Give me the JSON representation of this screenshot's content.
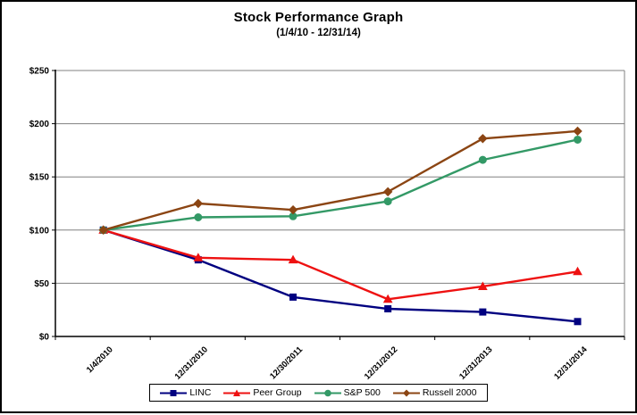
{
  "window": {
    "background_color": "#ffffff",
    "frame_border_color": "#000000"
  },
  "chart_data": {
    "type": "line",
    "title": "Stock Performance Graph",
    "subtitle": "(1/4/10 - 12/31/14)",
    "categories": [
      "1/4/2010",
      "12/31/2010",
      "12/30/2011",
      "12/31/2012",
      "12/31/2013",
      "12/31/2014"
    ],
    "series": [
      {
        "name": "LINC",
        "color": "#000080",
        "marker": "square",
        "values": [
          100,
          72,
          37,
          26,
          23,
          14
        ]
      },
      {
        "name": "Peer Group",
        "color": "#ee1111",
        "marker": "triangle",
        "values": [
          100,
          74,
          72,
          35,
          47,
          61
        ]
      },
      {
        "name": "S&P 500",
        "color": "#339966",
        "marker": "circle",
        "values": [
          100,
          112,
          113,
          127,
          166,
          185
        ]
      },
      {
        "name": "Russell 2000",
        "color": "#8b4513",
        "marker": "diamond",
        "values": [
          100,
          125,
          119,
          136,
          186,
          193
        ]
      }
    ],
    "ylim": [
      0,
      250
    ],
    "ytick_step": 50,
    "ytick_labels": [
      "$0",
      "$50",
      "$100",
      "$150",
      "$200",
      "$250"
    ],
    "xlabel": "",
    "ylabel": "",
    "grid": true,
    "gridline_color": "#808080",
    "axis_color": "#000000",
    "legend_position": "bottom"
  }
}
